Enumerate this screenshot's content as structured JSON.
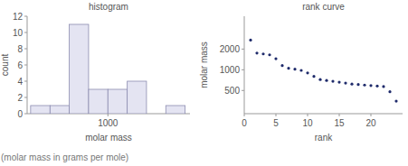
{
  "chart_data": [
    {
      "type": "histogram",
      "title": "histogram",
      "x_label": "molar mass",
      "y_label": "count",
      "bins": [
        316,
        422,
        562,
        750,
        1000,
        1334,
        1778,
        2371,
        3162
      ],
      "values": [
        1,
        1,
        11,
        3,
        3,
        4,
        0,
        1
      ],
      "color": "#e4e4f2",
      "log": "x",
      "xlim": [
        300,
        3400
      ],
      "xticks": [
        1000
      ],
      "ylim": [
        0,
        12
      ],
      "yticks": [
        0,
        2,
        4,
        6,
        8,
        10,
        12
      ],
      "grid": false
    },
    {
      "type": "scatter",
      "title": "rank curve",
      "x_label": "rank",
      "y_label": "molar mass",
      "x": [
        1,
        2,
        3,
        4,
        5,
        6,
        7,
        8,
        9,
        10,
        11,
        12,
        13,
        14,
        15,
        16,
        17,
        18,
        19,
        20,
        21,
        22,
        23,
        24
      ],
      "values": [
        2700,
        1750,
        1700,
        1650,
        1450,
        1150,
        1050,
        1020,
        980,
        900,
        800,
        720,
        700,
        680,
        660,
        640,
        620,
        610,
        600,
        590,
        580,
        570,
        480,
        350
      ],
      "color": "#1f2b6b",
      "marker": "circle",
      "log": "y",
      "xlim": [
        0,
        25
      ],
      "xticks": [
        0,
        5,
        10,
        15,
        20
      ],
      "ylim": [
        230,
        6000
      ],
      "yticks": [
        500,
        1000,
        2000
      ],
      "grid": false
    }
  ],
  "footnote": "(molar mass in grams per mole)"
}
